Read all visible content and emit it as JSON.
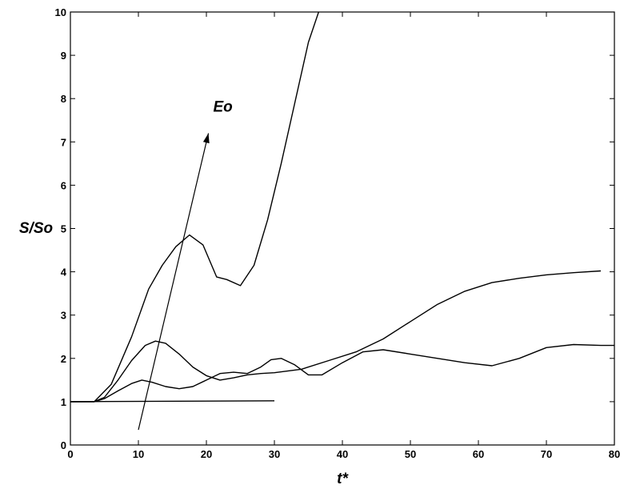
{
  "chart_data": {
    "type": "line",
    "xlabel": "t*",
    "ylabel": "S/So",
    "xlim": [
      0,
      80
    ],
    "ylim": [
      0,
      10
    ],
    "xticks": [
      "0",
      "10",
      "20",
      "30",
      "40",
      "50",
      "60",
      "70",
      "80"
    ],
    "yticks": [
      "0",
      "1",
      "2",
      "3",
      "4",
      "5",
      "6",
      "7",
      "8",
      "9",
      "10"
    ],
    "grid": false,
    "annotation": {
      "text": "Eo",
      "arrow_from": [
        10,
        0.35
      ],
      "arrow_to": [
        20.3,
        7.2
      ],
      "text_at": [
        21,
        7.7
      ]
    },
    "series": [
      {
        "x": [
          0,
          30
        ],
        "y": [
          1.0,
          1.02
        ]
      },
      {
        "x": [
          0,
          3.5,
          5,
          7,
          9,
          10.5,
          12,
          14,
          16,
          18,
          20,
          22,
          24,
          26,
          28,
          29.5,
          31,
          33,
          35,
          37,
          40,
          43,
          46,
          50,
          54,
          58,
          62,
          66,
          70,
          74,
          78,
          80
        ],
        "y": [
          1.0,
          1.0,
          1.07,
          1.25,
          1.42,
          1.5,
          1.45,
          1.35,
          1.3,
          1.35,
          1.5,
          1.65,
          1.68,
          1.65,
          1.8,
          1.97,
          2.0,
          1.85,
          1.62,
          1.62,
          1.9,
          2.15,
          2.2,
          2.1,
          2.0,
          1.9,
          1.83,
          2.0,
          2.25,
          2.32,
          2.3,
          2.3
        ]
      },
      {
        "x": [
          0,
          3.5,
          5,
          7,
          9,
          11,
          12.5,
          14,
          16,
          18,
          20,
          22,
          24,
          26,
          28,
          30,
          34,
          38,
          42,
          46,
          50,
          54,
          58,
          62,
          66,
          70,
          74,
          78
        ],
        "y": [
          1.0,
          1.0,
          1.1,
          1.5,
          1.95,
          2.3,
          2.4,
          2.35,
          2.1,
          1.8,
          1.6,
          1.5,
          1.55,
          1.62,
          1.65,
          1.67,
          1.75,
          1.95,
          2.15,
          2.45,
          2.85,
          3.25,
          3.55,
          3.75,
          3.85,
          3.93,
          3.98,
          4.02
        ]
      },
      {
        "x": [
          0,
          3.5,
          6,
          9,
          11.5,
          13.5,
          15.5,
          17.5,
          19.5,
          21.5,
          23,
          25,
          27,
          29,
          31,
          33,
          35,
          36.5
        ],
        "y": [
          1.0,
          1.0,
          1.4,
          2.5,
          3.6,
          4.15,
          4.58,
          4.85,
          4.62,
          3.88,
          3.82,
          3.68,
          4.15,
          5.2,
          6.5,
          7.9,
          9.3,
          10.0
        ]
      }
    ]
  }
}
